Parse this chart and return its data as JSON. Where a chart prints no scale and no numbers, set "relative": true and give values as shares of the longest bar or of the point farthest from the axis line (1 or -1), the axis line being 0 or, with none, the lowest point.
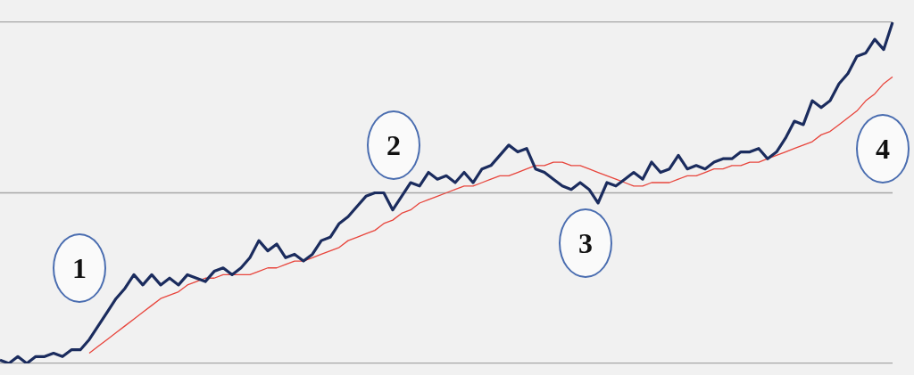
{
  "chart_data": {
    "type": "line",
    "relative": true,
    "grid": "y",
    "legend": false,
    "marker": "none",
    "line_style": "solid",
    "categories": [
      null,
      null,
      null,
      null,
      null,
      null,
      null,
      null,
      null,
      null,
      null,
      null,
      null,
      null,
      null,
      null,
      null,
      null,
      null,
      null,
      null,
      null,
      null,
      null,
      null,
      null,
      null,
      null,
      null,
      null,
      null,
      null,
      null,
      null,
      null,
      null,
      null,
      null,
      null,
      null,
      null,
      null,
      null,
      null,
      null,
      null,
      null,
      null,
      null,
      null,
      null,
      null,
      null,
      null,
      null,
      null,
      null,
      null,
      null,
      null,
      null,
      null,
      null,
      null,
      null,
      null,
      null,
      null,
      null,
      null,
      null,
      null,
      null,
      null,
      null,
      null,
      null,
      null,
      null,
      null,
      null,
      null,
      null,
      null,
      null,
      null,
      null,
      null,
      null,
      null,
      null,
      null,
      null,
      null,
      null,
      null,
      null,
      null,
      null,
      null,
      null
    ],
    "series": [
      {
        "color": "#1b2c5e",
        "values": [
          0.01,
          0,
          0.02,
          0,
          0.02,
          0.02,
          0.03,
          0.02,
          0.04,
          0.04,
          0.07,
          0.11,
          0.15,
          0.19,
          0.22,
          0.26,
          0.23,
          0.26,
          0.23,
          0.25,
          0.23,
          0.26,
          0.25,
          0.24,
          0.27,
          0.28,
          0.26,
          0.28,
          0.31,
          0.36,
          0.33,
          0.35,
          0.31,
          0.32,
          0.3,
          0.32,
          0.36,
          0.37,
          0.41,
          0.43,
          0.46,
          0.49,
          0.5,
          0.5,
          0.45,
          0.49,
          0.53,
          0.52,
          0.56,
          0.54,
          0.55,
          0.53,
          0.56,
          0.53,
          0.57,
          0.58,
          0.61,
          0.64,
          0.62,
          0.63,
          0.57,
          0.56,
          0.54,
          0.52,
          0.51,
          0.53,
          0.51,
          0.47,
          0.53,
          0.52,
          0.54,
          0.56,
          0.54,
          0.59,
          0.56,
          0.57,
          0.61,
          0.57,
          0.58,
          0.57,
          0.59,
          0.6,
          0.6,
          0.62,
          0.62,
          0.63,
          0.6,
          0.62,
          0.66,
          0.71,
          0.7,
          0.77,
          0.75,
          0.77,
          0.82,
          0.85,
          0.9,
          0.91,
          0.95,
          0.92,
          1
        ]
      },
      {
        "color": "#e8453c",
        "values": [
          null,
          null,
          null,
          null,
          null,
          null,
          null,
          null,
          null,
          null,
          0.03,
          0.05,
          0.07,
          0.09,
          0.11,
          0.13,
          0.15,
          0.17,
          0.19,
          0.2,
          0.21,
          0.23,
          0.24,
          0.25,
          0.25,
          0.26,
          0.26,
          0.26,
          0.26,
          0.27,
          0.28,
          0.28,
          0.29,
          0.3,
          0.3,
          0.31,
          0.32,
          0.33,
          0.34,
          0.36,
          0.37,
          0.38,
          0.39,
          0.41,
          0.42,
          0.44,
          0.45,
          0.47,
          0.48,
          0.49,
          0.5,
          0.51,
          0.52,
          0.52,
          0.53,
          0.54,
          0.55,
          0.55,
          0.56,
          0.57,
          0.58,
          0.58,
          0.59,
          0.59,
          0.58,
          0.58,
          0.57,
          0.56,
          0.55,
          0.54,
          0.53,
          0.52,
          0.52,
          0.53,
          0.53,
          0.53,
          0.54,
          0.55,
          0.55,
          0.56,
          0.57,
          0.57,
          0.58,
          0.58,
          0.59,
          0.59,
          0.6,
          0.61,
          0.62,
          0.63,
          0.64,
          0.65,
          0.67,
          0.68,
          0.7,
          0.72,
          0.74,
          0.77,
          0.79,
          0.82,
          0.84
        ]
      }
    ],
    "ref_lines": [
      {
        "axis": "y",
        "value": 0.5,
        "color": "#a6a6a6"
      }
    ],
    "annotations": [
      "1",
      "2",
      "3",
      "4"
    ]
  }
}
